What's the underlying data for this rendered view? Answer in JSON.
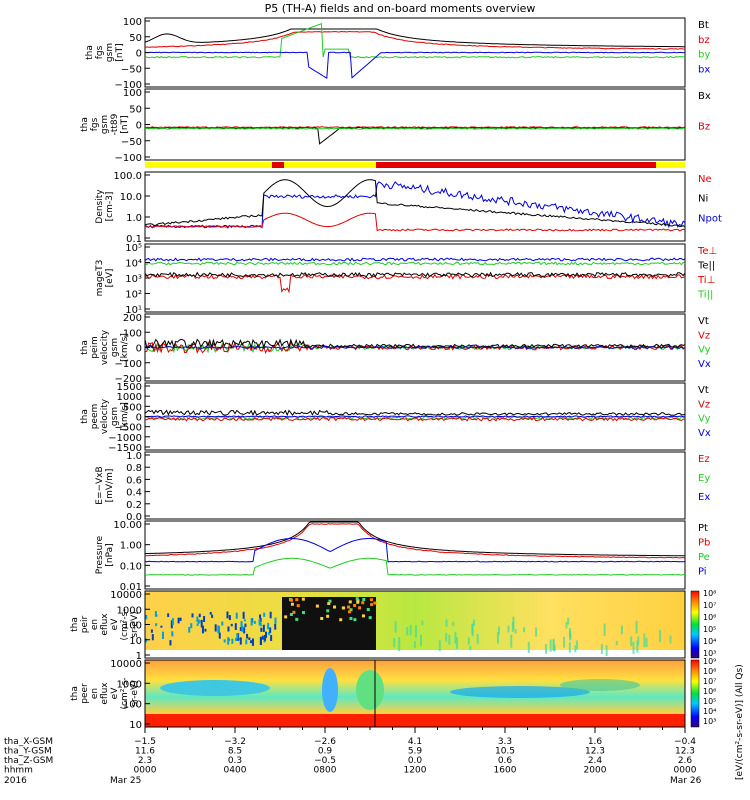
{
  "chart_data": {
    "type": "line",
    "title": "P5 (TH-A) fields and on-board moments overview",
    "colors": {
      "black": "#000000",
      "red": "#e00000",
      "green": "#22cc22",
      "blue": "#0000dd"
    },
    "panels": [
      {
        "ylabel": [
          "tha",
          "fgs",
          "gsm",
          "[nT]"
        ],
        "yticks": [
          "100",
          "50",
          "0",
          "−50",
          "−100"
        ],
        "legend": [
          {
            "label": "Bt",
            "color": "black"
          },
          {
            "label": "bz",
            "color": "red"
          },
          {
            "label": "by",
            "color": "green"
          },
          {
            "label": "bx",
            "color": "blue"
          }
        ]
      },
      {
        "ylabel": [
          "tha",
          "fgs",
          "gsm",
          "-tt89",
          "[nT]"
        ],
        "yticks": [
          "100",
          "50",
          "0",
          "−50",
          "−100"
        ],
        "legend": [
          {
            "label": "Bx",
            "color": "black"
          },
          {
            "label": "Bz",
            "color": "red"
          }
        ]
      },
      {
        "ylabel": [
          "Density",
          "[cm-3]"
        ],
        "yticks": [
          "100.0",
          "10.0",
          "1.0",
          "0.1"
        ],
        "legend": [
          {
            "label": "Ne",
            "color": "red"
          },
          {
            "label": "Ni",
            "color": "black"
          },
          {
            "label": "Npot",
            "color": "blue"
          }
        ]
      },
      {
        "ylabel": [
          "mageT3",
          "[eV]"
        ],
        "yticks": [
          "10⁵",
          "10⁴",
          "10³",
          "10²",
          "10¹"
        ],
        "legend": [
          {
            "label": "Te⊥",
            "color": "red"
          },
          {
            "label": "Te||",
            "color": "black"
          },
          {
            "label": "Ti⊥",
            "color": "red"
          },
          {
            "label": "Ti||",
            "color": "green"
          }
        ]
      },
      {
        "ylabel": [
          "tha",
          "peim",
          "velocity",
          "gsm",
          "[km/s]"
        ],
        "yticks": [
          "200",
          "100",
          "0",
          "−100",
          "−200"
        ],
        "legend": [
          {
            "label": "Vt",
            "color": "black"
          },
          {
            "label": "Vz",
            "color": "red"
          },
          {
            "label": "Vy",
            "color": "green"
          },
          {
            "label": "Vx",
            "color": "blue"
          }
        ]
      },
      {
        "ylabel": [
          "tha",
          "peem",
          "velocity",
          "gsm",
          "[km/s]"
        ],
        "yticks": [
          "1500",
          "1000",
          "500",
          "0",
          "−500",
          "−1000",
          "−1500"
        ],
        "legend": [
          {
            "label": "Vt",
            "color": "black"
          },
          {
            "label": "Vz",
            "color": "red"
          },
          {
            "label": "Vy",
            "color": "green"
          },
          {
            "label": "Vx",
            "color": "blue"
          }
        ]
      },
      {
        "ylabel": [
          "E=−VxB",
          "[mV/m]"
        ],
        "yticks": [
          "1.0",
          "0.8",
          "0.6",
          "0.4",
          "0.2",
          "0.0"
        ],
        "legend": [
          {
            "label": "Ez",
            "color": "red"
          },
          {
            "label": "Ey",
            "color": "green"
          },
          {
            "label": "Ex",
            "color": "blue"
          }
        ]
      },
      {
        "ylabel": [
          "Pressure",
          "[nPa]"
        ],
        "yticks": [
          "10.00",
          "1.00",
          "0.10",
          "0.01"
        ],
        "legend": [
          {
            "label": "Pt",
            "color": "black"
          },
          {
            "label": "Pb",
            "color": "red"
          },
          {
            "label": "Pe",
            "color": "green"
          },
          {
            "label": "Pi",
            "color": "blue"
          }
        ]
      },
      {
        "ylabel": [
          "tha",
          "peir",
          "en",
          "eflux",
          "eV",
          "(cm²-s-",
          "sr-eV)"
        ],
        "yticks": [
          "10000",
          "1000",
          "100",
          "10",
          "1"
        ],
        "legend": []
      },
      {
        "ylabel": [
          "tha",
          "peer",
          "en",
          "eflux",
          "eV",
          "(cm²-s-",
          "sr-eV)"
        ],
        "yticks": [
          "10000",
          "1000",
          "100",
          "10"
        ],
        "legend": []
      }
    ],
    "colorbar": {
      "label": "[eV/(cm²-s-sr-eV)] (All Qs)",
      "upper_ticks": [
        "10⁸",
        "10⁷",
        "10⁶",
        "10⁵",
        "10⁴",
        "10³"
      ],
      "lower_ticks": [
        "10⁹",
        "10⁸",
        "10⁷",
        "10⁶",
        "10⁵",
        "10⁴",
        "10³"
      ]
    },
    "xaxis": {
      "rows": [
        {
          "label": "tha_X-GSM",
          "values": [
            "−1.5",
            "−3.2",
            "−2.6",
            "4.1",
            "3.3",
            "1.6",
            "−0.4"
          ]
        },
        {
          "label": "tha_Y-GSM",
          "values": [
            "11.6",
            "8.5",
            "0.9",
            "5.9",
            "10.5",
            "12.3",
            "12.3"
          ]
        },
        {
          "label": "tha_Z-GSM",
          "values": [
            "2.3",
            "0.3",
            "−0.5",
            "0.0",
            "0.6",
            "2.4",
            "2.6"
          ]
        },
        {
          "label": "hhmm",
          "values": [
            "0000",
            "0400",
            "0800",
            "1200",
            "1600",
            "2000",
            "0000"
          ]
        }
      ],
      "year": "2016",
      "start_date": "Mar 25",
      "end_date": "Mar 26"
    },
    "series_hint": {
      "bt_center_hhmm": "0845",
      "magnetosphere_band": "yellow/red status bar"
    }
  }
}
